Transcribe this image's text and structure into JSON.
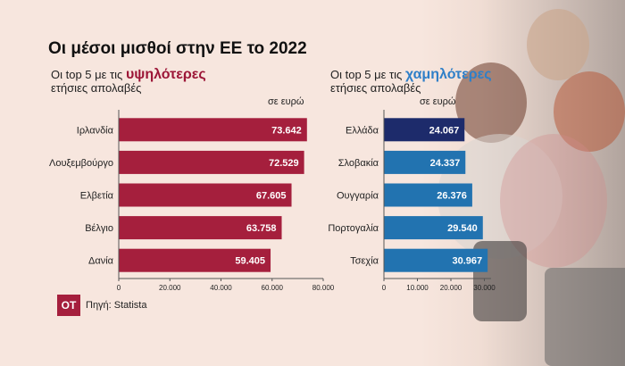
{
  "title": "Οι μέσοι μισθοί στην ΕΕ το 2022",
  "source": {
    "logo": "OT",
    "text": "Πηγή: Statista"
  },
  "colors": {
    "top": "#a51f3d",
    "bottom_first": "#1d2b6b",
    "bottom": "#2273b0",
    "background": "#f7e6de"
  },
  "chart_data": [
    {
      "type": "bar",
      "orientation": "horizontal",
      "title_prefix": "Οι top 5 με τις",
      "title_highlight": "υψηλότερες",
      "title_suffix": "ετήσιες απολαβές",
      "unit": "σε ευρώ",
      "categories": [
        "Ιρλανδία",
        "Λουξεμβούργο",
        "Ελβετία",
        "Βέλγιο",
        "Δανία"
      ],
      "values": [
        73642,
        72529,
        67605,
        63758,
        59405
      ],
      "value_labels": [
        "73.642",
        "72.529",
        "67.605",
        "63.758",
        "59.405"
      ],
      "xlim": [
        0,
        80000
      ],
      "ticks": [
        0,
        20000,
        40000,
        60000,
        80000
      ],
      "tick_labels": [
        "0",
        "20.000",
        "40.000",
        "60.000",
        "80.000"
      ]
    },
    {
      "type": "bar",
      "orientation": "horizontal",
      "title_prefix": "Οι top 5 με τις",
      "title_highlight": "χαμηλότερες",
      "title_suffix": "ετήσιες απολαβές",
      "unit": "σε ευρώ",
      "categories": [
        "Ελλάδα",
        "Σλοβακία",
        "Ουγγαρία",
        "Πορτογαλία",
        "Τσεχία"
      ],
      "values": [
        24067,
        24337,
        26376,
        29540,
        30967
      ],
      "value_labels": [
        "24.067",
        "24.337",
        "26.376",
        "29.540",
        "30.967"
      ],
      "xlim": [
        0,
        32000
      ],
      "ticks": [
        0,
        10000,
        20000,
        30000
      ],
      "tick_labels": [
        "0",
        "10.000",
        "20.000",
        "30.000"
      ]
    }
  ]
}
